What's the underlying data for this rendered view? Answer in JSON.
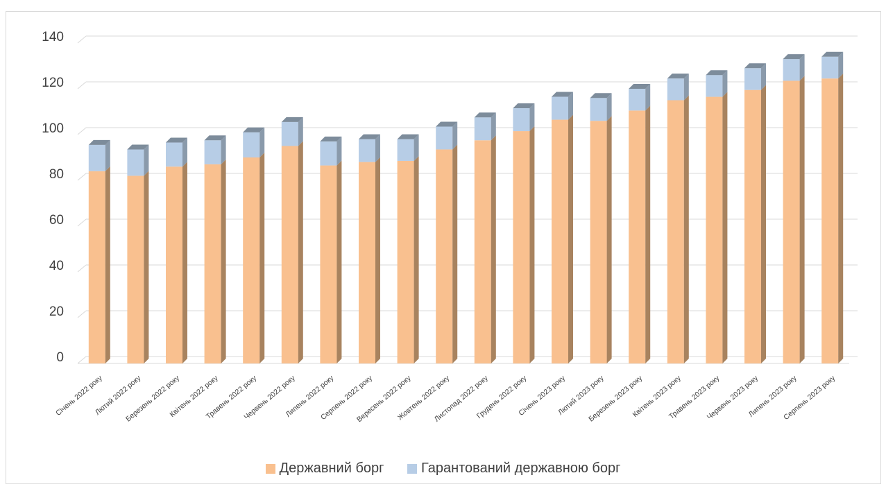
{
  "chart_data": {
    "type": "bar",
    "stacked": true,
    "style": "3d",
    "categories": [
      "Січень 2022 року",
      "Лютий 2022 року",
      "Березень 2022 року",
      "Квітень 2022 року",
      "Травень 2022 року",
      "Червень 2022 року",
      "Липень 2022 року",
      "Серпень 2022 року",
      "Вересень 2022 року",
      "Жовтень 2022 року",
      "Листопад 2022 року",
      "Грудень 2022 року",
      "Січень 2023 року",
      "Лютий 2023 року",
      "Березень 2023 року",
      "Квітень 2023 року",
      "Травень 2023 року",
      "Червень 2023 року",
      "Липень 2023 року",
      "Серпень 2023 року"
    ],
    "series": [
      {
        "name": "Державний борг",
        "color": "#F9C08F",
        "values": [
          84,
          82,
          86,
          87,
          90,
          95,
          86.5,
          88,
          88.5,
          93.5,
          97.5,
          101.5,
          106.5,
          106,
          110.5,
          115,
          116.5,
          119.5,
          123.5,
          124.5
        ]
      },
      {
        "name": "Гарантований державною борг",
        "color": "#B7CDE6",
        "values": [
          11.5,
          11.5,
          10.5,
          10.5,
          11,
          10.5,
          10.5,
          10,
          9.5,
          10,
          10,
          10,
          10,
          10,
          9.5,
          9.5,
          9.5,
          9.5,
          9.5,
          9.5
        ]
      }
    ],
    "ylim": [
      0,
      140
    ],
    "yticks": [
      "0",
      "20",
      "40",
      "60",
      "80",
      "100",
      "120",
      "140"
    ],
    "grid": true,
    "legend_position": "bottom",
    "title": "",
    "xlabel": "",
    "ylabel": ""
  },
  "legend": {
    "items": [
      {
        "label": "Державний борг",
        "color": "#F9C08F"
      },
      {
        "label": "Гарантований державною борг",
        "color": "#B7CDE6"
      }
    ]
  }
}
